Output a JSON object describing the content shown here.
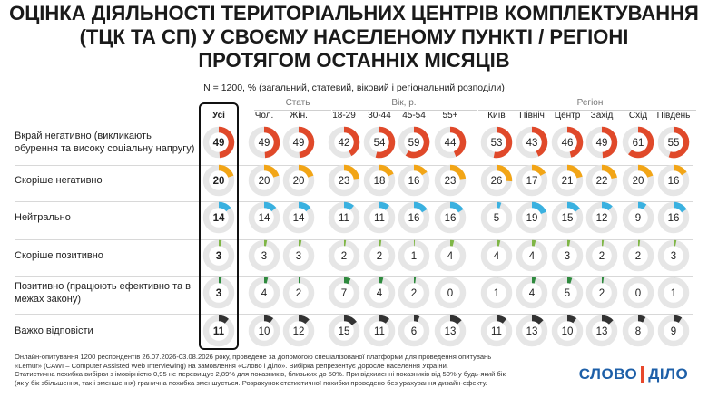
{
  "title_lines": [
    "ОЦІНКА ДІЯЛЬНОСТІ ТЕРИТОРІАЛЬНИХ ЦЕНТРІВ КОМПЛЕКТУВАННЯ",
    "(ТЦК ТА СП) У СВОЄМУ НАСЕЛЕНОМУ ПУНКТІ / РЕГІОНІ",
    "ПРОТЯГОМ ОСТАННІХ МІСЯЦІВ"
  ],
  "subtitle": "N = 1200, % (загальний, статевий, віковий і регіональний розподіли)",
  "groups": [
    "Стать",
    "Вік, р.",
    "Регіон"
  ],
  "footer_lines": [
    "Онлайн-опитування 1200 респондентів 26.07.2026-03.08.2026 року, проведене за допомогою спеціалізованої платформи для проведення опитувань",
    "«Lemur» (CAWI – Computer Assisted Web Interviewing) на замовлення «Слово і Діло». Вибірка репрезентує доросле населення України.",
    "Статистична похибка вибірки з імовірністю 0,95 не перевищує 2,89% для показників, близьких до 50%. При відхиленні показників від 50% у будь-який бік",
    "(як у бік збільшення, так і зменшення) гранична похибка зменшується. Розрахунок статистичної похибки проведено без урахування дизайн-ефекту."
  ],
  "logo": {
    "word1": "СЛОВО",
    "word2": "ДІЛО"
  },
  "chart_data": {
    "type": "donut-grid",
    "columns": [
      "Усі",
      "Чол.",
      "Жін.",
      "18-29",
      "30-44",
      "45-54",
      "55+",
      "Київ",
      "Північ",
      "Центр",
      "Захід",
      "Схід",
      "Південь"
    ],
    "rows": [
      {
        "label": "Вкрай негативно (викликають обурення та високу соціальну напругу)",
        "color": "#e0492a",
        "values": [
          49,
          49,
          49,
          42,
          54,
          59,
          44,
          53,
          43,
          46,
          49,
          61,
          55
        ]
      },
      {
        "label": "Скоріше негативно",
        "color": "#f2a516",
        "values": [
          20,
          20,
          20,
          23,
          18,
          16,
          23,
          26,
          17,
          21,
          22,
          20,
          16
        ]
      },
      {
        "label": "Нейтрально",
        "color": "#3ab1e0",
        "values": [
          14,
          14,
          14,
          11,
          11,
          16,
          16,
          5,
          19,
          15,
          12,
          9,
          16
        ]
      },
      {
        "label": "Скоріше позитивно",
        "color": "#7fb646",
        "values": [
          3,
          3,
          3,
          2,
          2,
          1,
          4,
          4,
          4,
          3,
          2,
          2,
          3
        ]
      },
      {
        "label": "Позитивно (працюють ефективно та в межах закону)",
        "color": "#2f8a3e",
        "values": [
          3,
          4,
          2,
          7,
          4,
          2,
          0,
          1,
          4,
          5,
          2,
          0,
          1
        ]
      },
      {
        "label": "Важко відповісти",
        "color": "#333333",
        "values": [
          11,
          10,
          12,
          15,
          11,
          6,
          13,
          11,
          13,
          10,
          13,
          8,
          9
        ]
      }
    ],
    "track_color": "#e6e6e6"
  }
}
